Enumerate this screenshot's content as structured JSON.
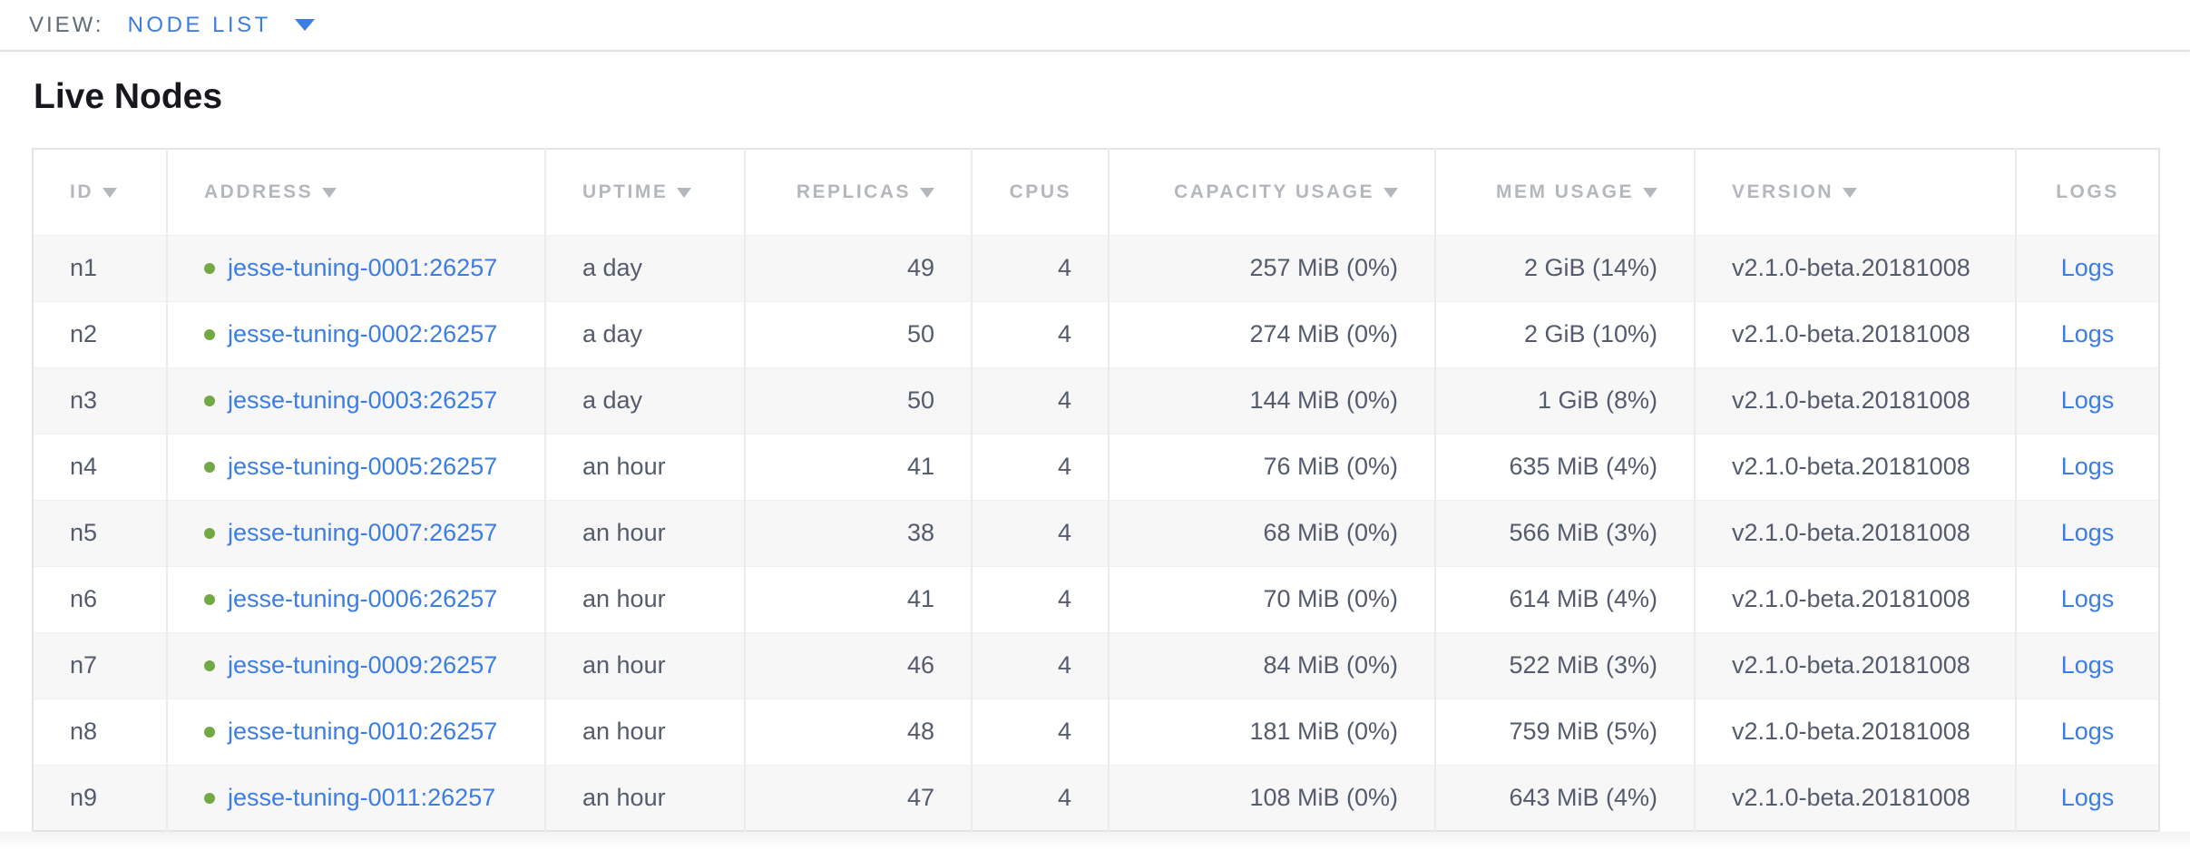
{
  "top_nav": {
    "view_label": "VIEW:",
    "view_value": "NODE LIST"
  },
  "page": {
    "title": "Live Nodes"
  },
  "colors": {
    "link_blue": "#3b7de2",
    "node_healthy_green": "#72a944",
    "header_text_gray": "#b4b7bc",
    "body_text_slate": "#545b6d"
  },
  "table": {
    "columns": [
      {
        "key": "id",
        "label": "ID",
        "sortable": true,
        "align": "left"
      },
      {
        "key": "address",
        "label": "ADDRESS",
        "sortable": true,
        "align": "left"
      },
      {
        "key": "uptime",
        "label": "UPTIME",
        "sortable": true,
        "align": "left"
      },
      {
        "key": "replicas",
        "label": "REPLICAS",
        "sortable": true,
        "align": "right"
      },
      {
        "key": "cpus",
        "label": "CPUS",
        "sortable": false,
        "align": "right"
      },
      {
        "key": "capacity",
        "label": "CAPACITY USAGE",
        "sortable": true,
        "align": "right"
      },
      {
        "key": "mem",
        "label": "MEM USAGE",
        "sortable": true,
        "align": "right"
      },
      {
        "key": "version",
        "label": "VERSION",
        "sortable": true,
        "align": "left"
      },
      {
        "key": "logs",
        "label": "LOGS",
        "sortable": false,
        "align": "center"
      }
    ],
    "rows": [
      {
        "id": "n1",
        "status": "healthy",
        "address": "jesse-tuning-0001:26257",
        "uptime": "a day",
        "replicas": "49",
        "cpus": "4",
        "capacity": "257 MiB (0%)",
        "mem": "2 GiB (14%)",
        "version": "v2.1.0-beta.20181008",
        "logs": "Logs"
      },
      {
        "id": "n2",
        "status": "healthy",
        "address": "jesse-tuning-0002:26257",
        "uptime": "a day",
        "replicas": "50",
        "cpus": "4",
        "capacity": "274 MiB (0%)",
        "mem": "2 GiB (10%)",
        "version": "v2.1.0-beta.20181008",
        "logs": "Logs"
      },
      {
        "id": "n3",
        "status": "healthy",
        "address": "jesse-tuning-0003:26257",
        "uptime": "a day",
        "replicas": "50",
        "cpus": "4",
        "capacity": "144 MiB (0%)",
        "mem": "1 GiB (8%)",
        "version": "v2.1.0-beta.20181008",
        "logs": "Logs"
      },
      {
        "id": "n4",
        "status": "healthy",
        "address": "jesse-tuning-0005:26257",
        "uptime": "an hour",
        "replicas": "41",
        "cpus": "4",
        "capacity": "76 MiB (0%)",
        "mem": "635 MiB (4%)",
        "version": "v2.1.0-beta.20181008",
        "logs": "Logs"
      },
      {
        "id": "n5",
        "status": "healthy",
        "address": "jesse-tuning-0007:26257",
        "uptime": "an hour",
        "replicas": "38",
        "cpus": "4",
        "capacity": "68 MiB (0%)",
        "mem": "566 MiB (3%)",
        "version": "v2.1.0-beta.20181008",
        "logs": "Logs"
      },
      {
        "id": "n6",
        "status": "healthy",
        "address": "jesse-tuning-0006:26257",
        "uptime": "an hour",
        "replicas": "41",
        "cpus": "4",
        "capacity": "70 MiB (0%)",
        "mem": "614 MiB (4%)",
        "version": "v2.1.0-beta.20181008",
        "logs": "Logs"
      },
      {
        "id": "n7",
        "status": "healthy",
        "address": "jesse-tuning-0009:26257",
        "uptime": "an hour",
        "replicas": "46",
        "cpus": "4",
        "capacity": "84 MiB (0%)",
        "mem": "522 MiB (3%)",
        "version": "v2.1.0-beta.20181008",
        "logs": "Logs"
      },
      {
        "id": "n8",
        "status": "healthy",
        "address": "jesse-tuning-0010:26257",
        "uptime": "an hour",
        "replicas": "48",
        "cpus": "4",
        "capacity": "181 MiB (0%)",
        "mem": "759 MiB (5%)",
        "version": "v2.1.0-beta.20181008",
        "logs": "Logs"
      },
      {
        "id": "n9",
        "status": "healthy",
        "address": "jesse-tuning-0011:26257",
        "uptime": "an hour",
        "replicas": "47",
        "cpus": "4",
        "capacity": "108 MiB (0%)",
        "mem": "643 MiB (4%)",
        "version": "v2.1.0-beta.20181008",
        "logs": "Logs"
      }
    ]
  }
}
